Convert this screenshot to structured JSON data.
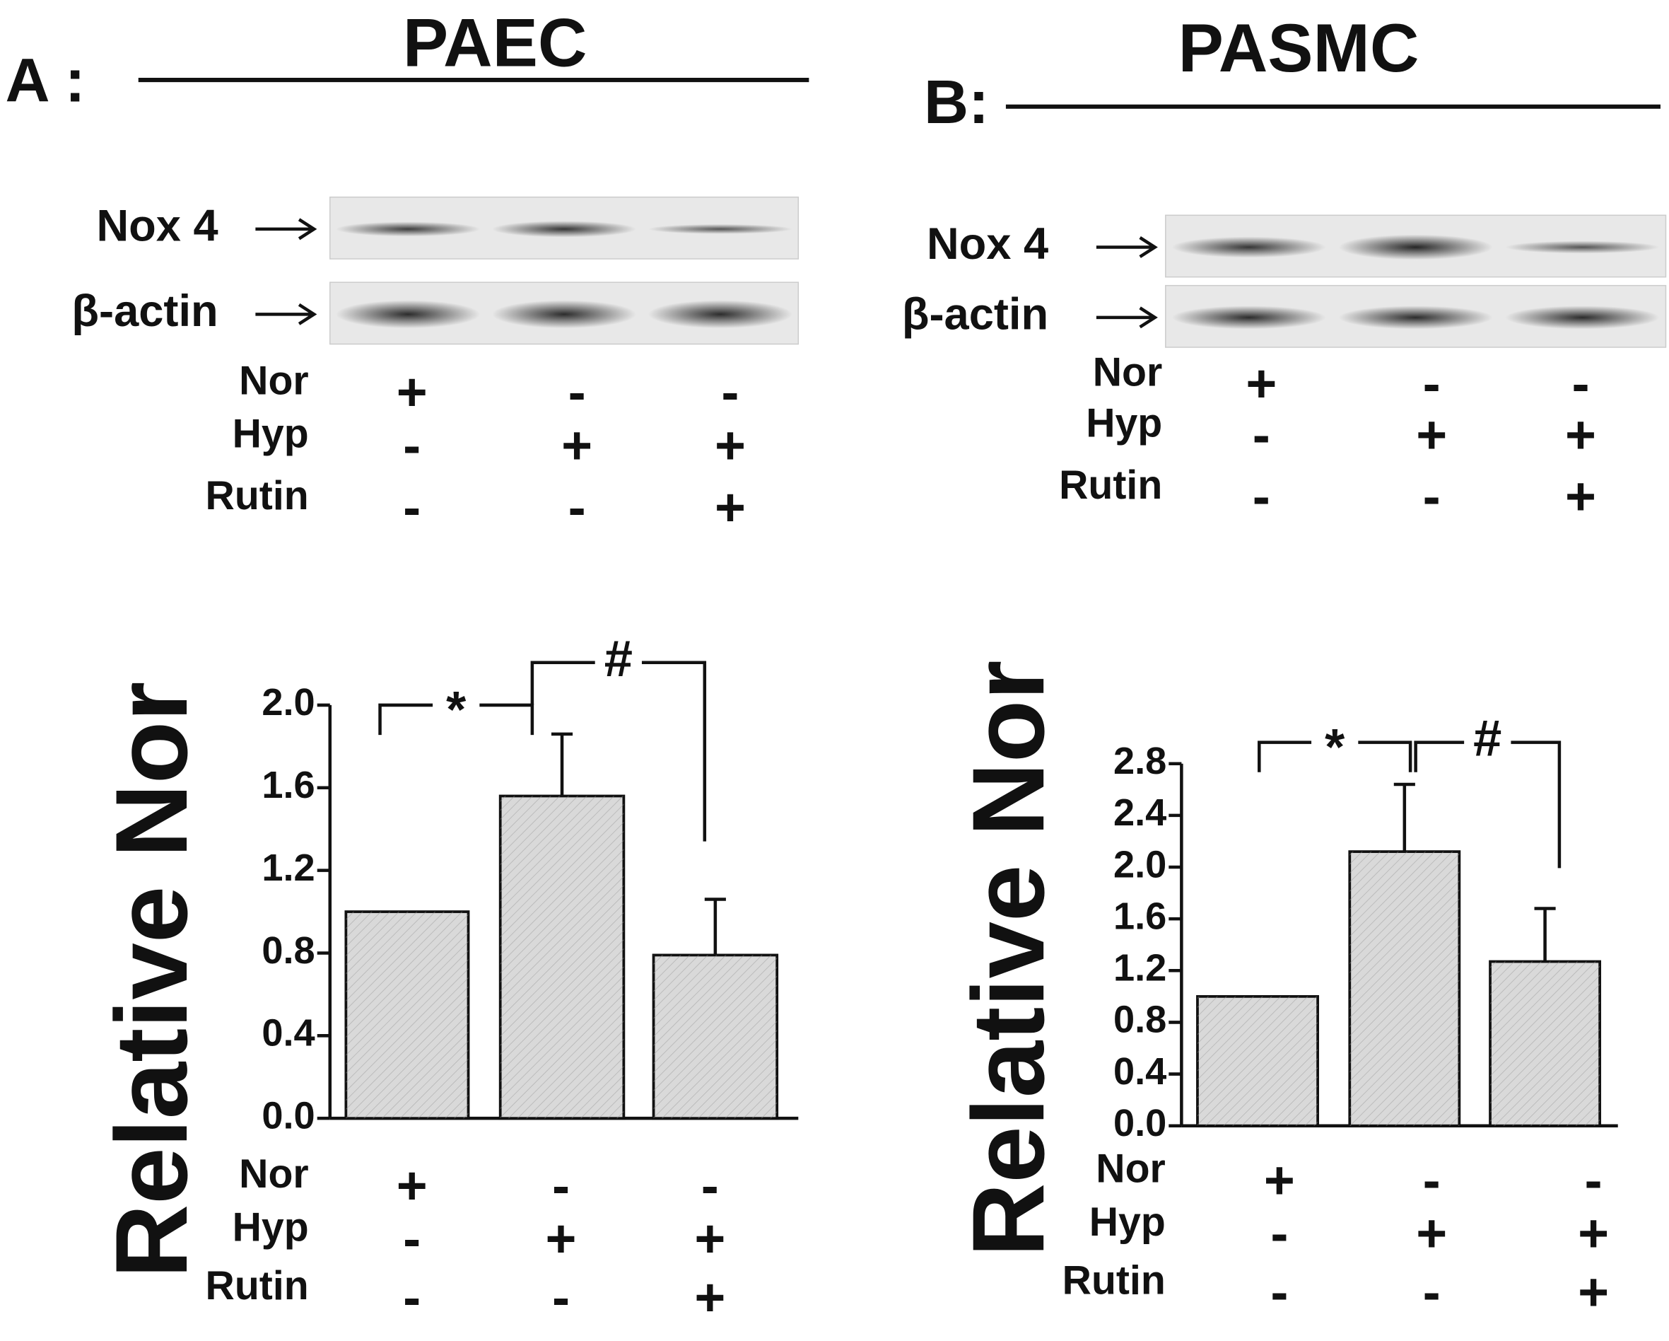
{
  "chart_data": [
    {
      "type": "bar",
      "panel": "A :",
      "title": "PAEC",
      "ylabel": "Relative Nor",
      "blot": {
        "bands": [
          "Nox 4",
          "β-actin"
        ],
        "conditions": [
          {
            "name": "Nor",
            "signs": [
              "+",
              "-",
              "-"
            ]
          },
          {
            "name": "Hyp",
            "signs": [
              "-",
              "+",
              "+"
            ]
          },
          {
            "name": "Rutin",
            "signs": [
              "-",
              "-",
              "+"
            ]
          }
        ]
      },
      "categories": [
        null,
        null,
        null
      ],
      "values": [
        1.0,
        1.56,
        0.79
      ],
      "errors": [
        0,
        0.3,
        0.27
      ],
      "color": "#d9d9d9",
      "ylim": [
        0,
        2.0
      ],
      "yticks": [
        {
          "value": 0,
          "label": "0.0"
        },
        0.4,
        0.8,
        1.2,
        1.6,
        {
          "value": 2.0,
          "label": "2.0"
        }
      ],
      "annotations": [
        "*",
        "#"
      ],
      "conditions": [
        {
          "name": "Nor",
          "signs": [
            "+",
            "-",
            "-"
          ]
        },
        {
          "name": "Hyp",
          "signs": [
            "-",
            "+",
            "+"
          ]
        },
        {
          "name": "Rutin",
          "signs": [
            "-",
            "-",
            "+"
          ]
        }
      ]
    },
    {
      "type": "bar",
      "panel": "B:",
      "title": "PASMC",
      "ylabel": "Relative Nor",
      "blot": {
        "bands": [
          "Nox 4",
          "β-actin"
        ],
        "conditions": [
          {
            "name": "Nor",
            "signs": [
              "+",
              "-",
              "-"
            ]
          },
          {
            "name": "Hyp",
            "signs": [
              "-",
              "+",
              "+"
            ]
          },
          {
            "name": "Rutin",
            "signs": [
              "-",
              "-",
              "+"
            ]
          }
        ]
      },
      "categories": [
        null,
        null,
        null
      ],
      "values": [
        1.0,
        2.12,
        1.27
      ],
      "errors": [
        0,
        0.52,
        0.41
      ],
      "color": "#d9d9d9",
      "ylim": [
        0,
        2.8
      ],
      "yticks": [
        {
          "value": 0,
          "label": "0.0"
        },
        0.4,
        0.8,
        1.2,
        1.6,
        {
          "value": 2.0,
          "label": "2.0"
        },
        2.4,
        2.8
      ],
      "annotations": [
        "*",
        "#"
      ],
      "conditions": [
        {
          "name": "Nor",
          "signs": [
            "+",
            "-",
            "-"
          ]
        },
        {
          "name": "Hyp",
          "signs": [
            "-",
            "+",
            "+"
          ]
        },
        {
          "name": "Rutin",
          "signs": [
            "-",
            "-",
            "+"
          ]
        }
      ]
    }
  ]
}
